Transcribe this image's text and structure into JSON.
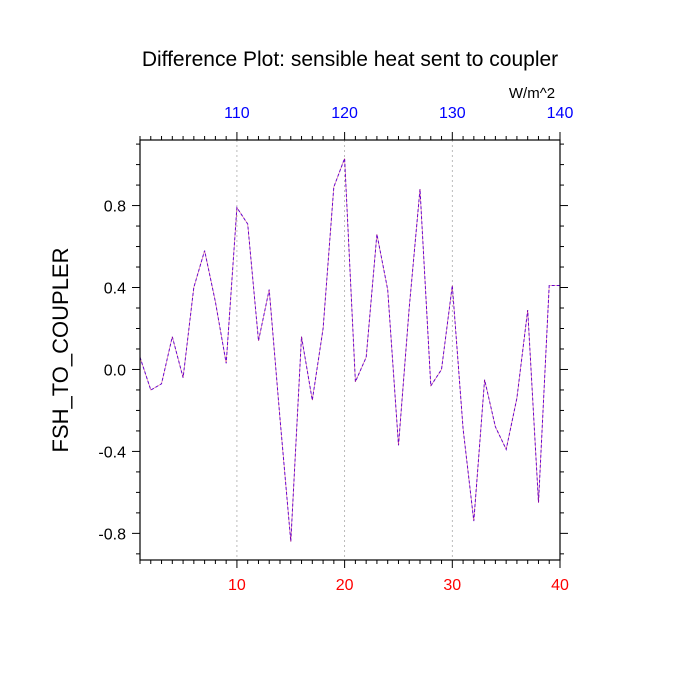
{
  "chart_data": {
    "type": "line",
    "title": "Difference Plot: sensible heat sent to coupler",
    "ylabel": "FSH_TO_COUPLER",
    "top_axis_units": "W/m^2",
    "xlim": [
      1,
      40
    ],
    "ylim": [
      -0.93,
      1.12
    ],
    "x_ticks": [
      "10",
      "20",
      "30",
      "40"
    ],
    "x_tick_values": [
      10,
      20,
      30,
      40
    ],
    "top_ticks": [
      "110",
      "120",
      "130",
      "140"
    ],
    "top_tick_values": [
      10,
      20,
      30,
      40
    ],
    "y_ticks": [
      "-0.8",
      "-0.4",
      "0.0",
      "0.4",
      "0.8"
    ],
    "y_tick_values": [
      -0.8,
      -0.4,
      0.0,
      0.4,
      0.8
    ],
    "grid": "vertical dotted at top-axis ticks",
    "x": [
      1,
      2,
      3,
      4,
      5,
      6,
      7,
      8,
      9,
      10,
      11,
      12,
      13,
      14,
      15,
      16,
      17,
      18,
      19,
      20,
      21,
      22,
      23,
      24,
      25,
      26,
      27,
      28,
      29,
      30,
      31,
      32,
      33,
      34,
      35,
      36,
      37,
      38,
      39,
      40
    ],
    "series": [
      {
        "values": [
          0.06,
          -0.1,
          -0.07,
          0.16,
          -0.04,
          0.4,
          0.58,
          0.33,
          0.03,
          0.79,
          0.71,
          0.14,
          0.39,
          -0.24,
          -0.84,
          0.16,
          -0.15,
          0.2,
          0.89,
          1.03,
          -0.06,
          0.06,
          0.66,
          0.39,
          -0.37,
          0.3,
          0.88,
          -0.08,
          0.0,
          0.41,
          -0.29,
          -0.74,
          -0.05,
          -0.28,
          -0.39,
          -0.14,
          0.29,
          -0.65,
          0.41,
          0.41
        ]
      }
    ],
    "colors": {
      "line": "#6600cc",
      "bottom_ticks": "#ff0000",
      "top_ticks": "#0000ff",
      "text": "#000000",
      "grid": "#aaaaaa"
    }
  }
}
